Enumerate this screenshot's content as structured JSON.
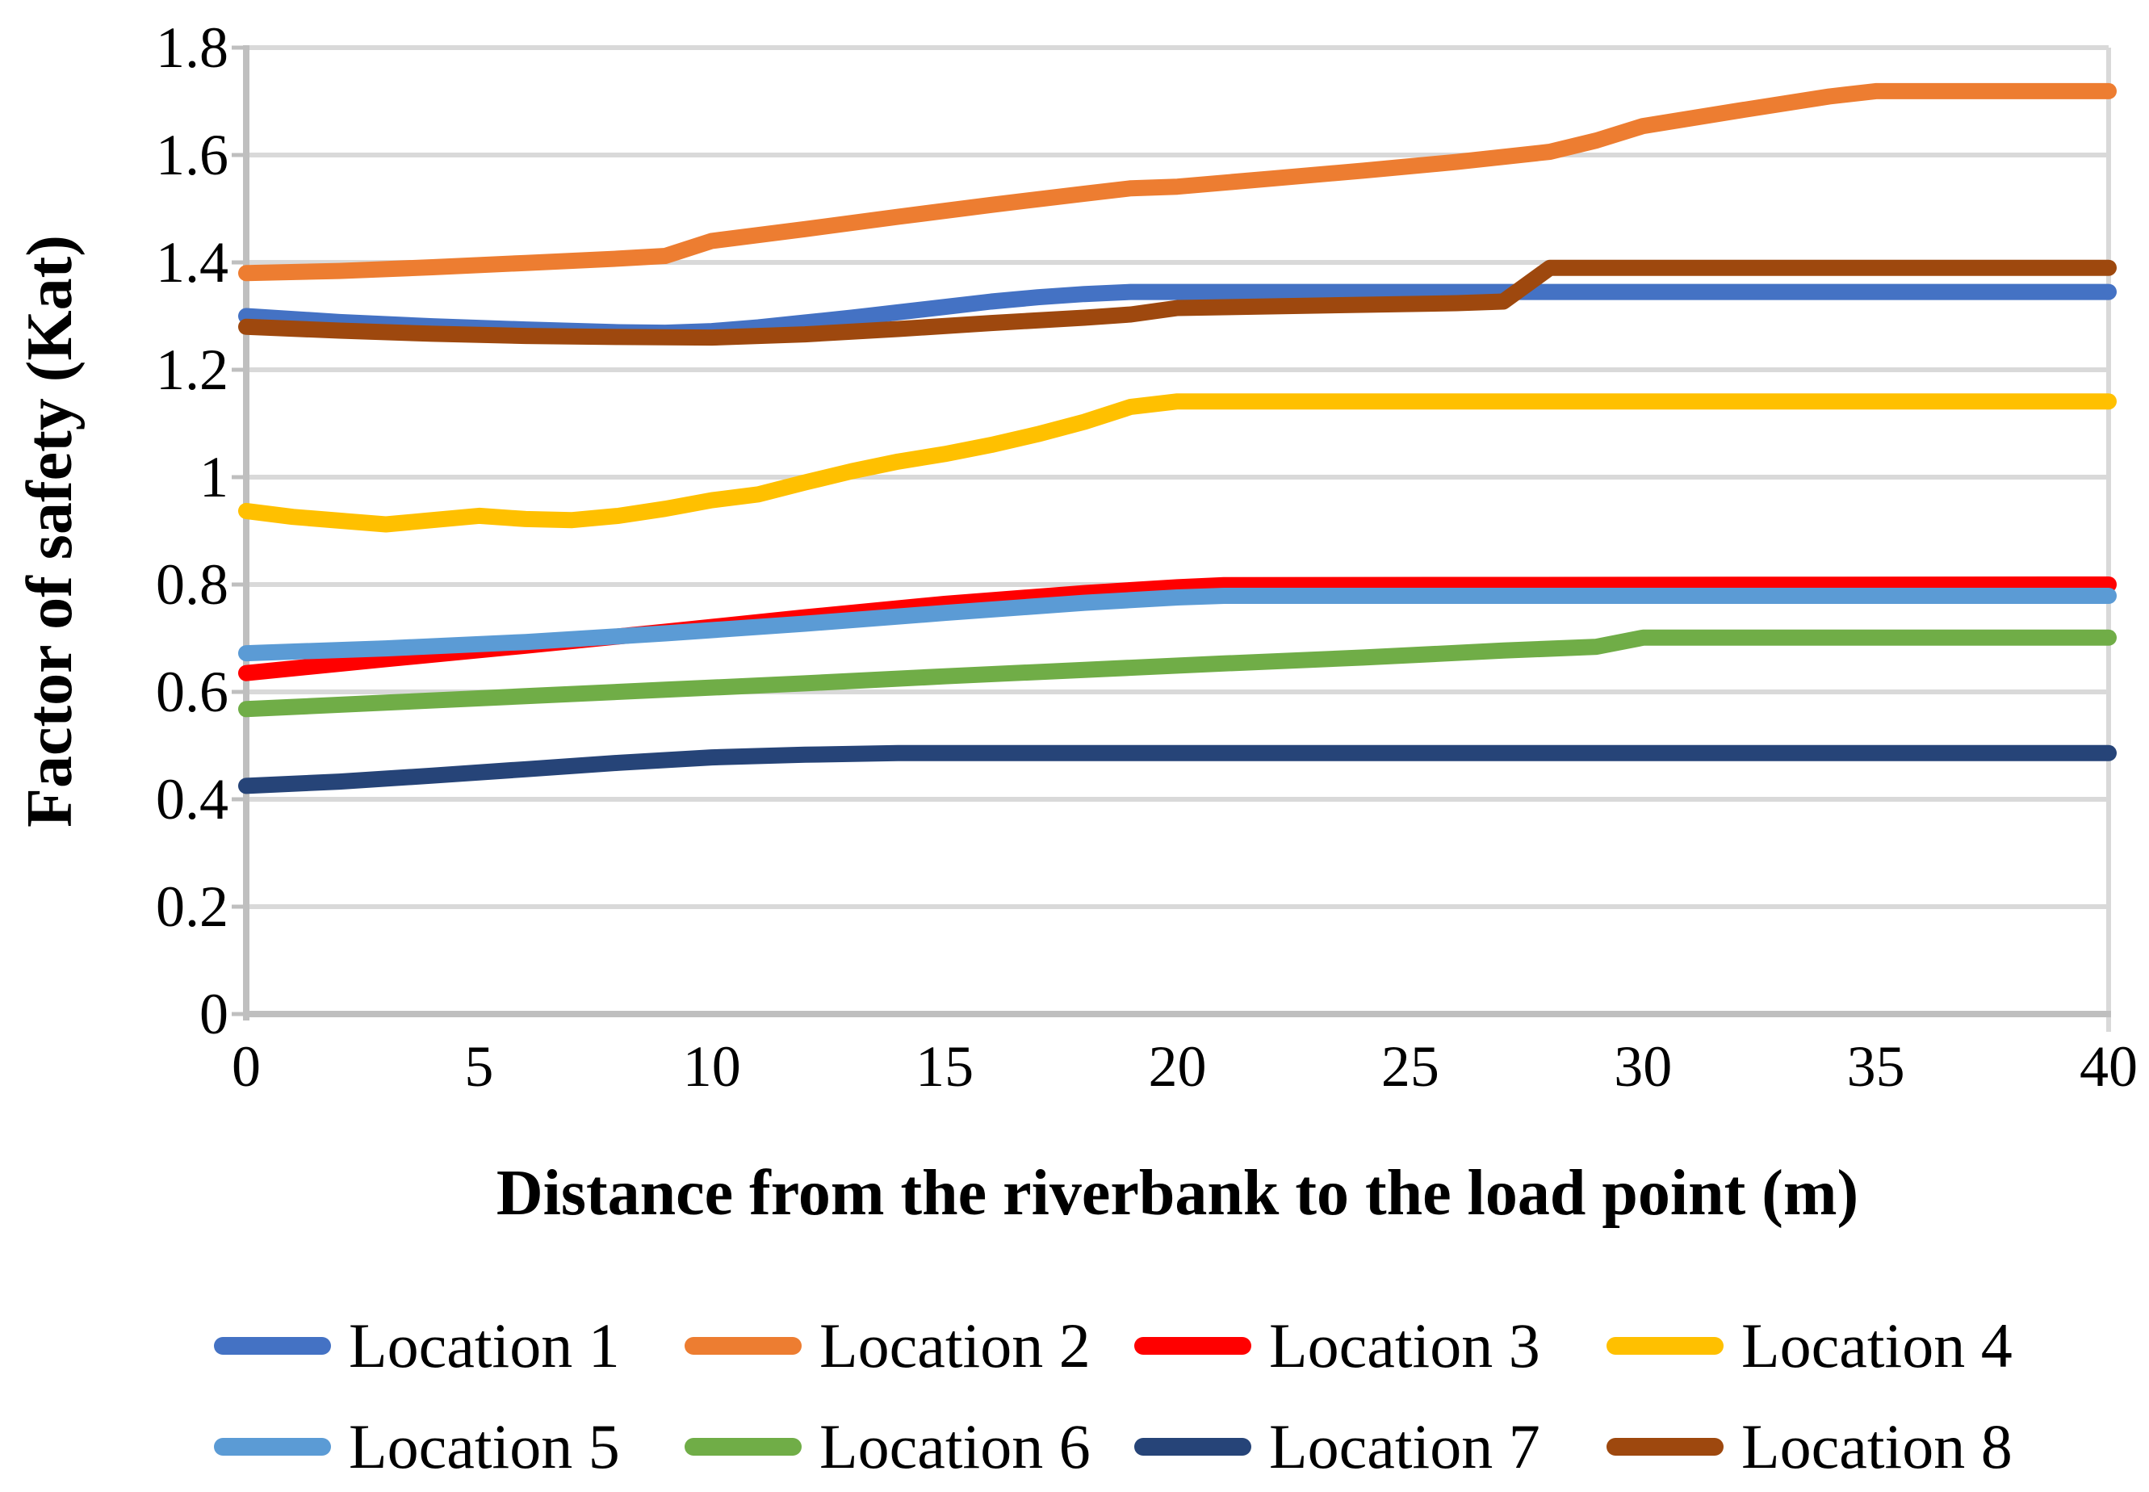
{
  "chart_data": {
    "type": "line",
    "title": "",
    "xlabel": "Distance from the riverbank to the load point (m)",
    "ylabel": "Factor of safety (Kat)",
    "xlim": [
      0,
      40
    ],
    "ylim": [
      0,
      1.8
    ],
    "x_ticks": [
      0,
      5,
      10,
      15,
      20,
      25,
      30,
      35,
      40
    ],
    "x_tick_labels": [
      "0",
      "5",
      "10",
      "15",
      "20",
      "25",
      "30",
      "35",
      "40"
    ],
    "y_ticks": [
      0,
      0.2,
      0.4,
      0.6,
      0.8,
      1,
      1.2,
      1.4,
      1.6,
      1.8
    ],
    "y_tick_labels": [
      "0",
      "0.2",
      "0.4",
      "0.6",
      "0.8",
      "1",
      "1.2",
      "1.4",
      "1.6",
      "1.8"
    ],
    "grid": "horizontal",
    "legend_position": "bottom",
    "colors": {
      "gridline": "#D9D9D9",
      "axis_line": "#BFBFBF",
      "text": "#000000",
      "background": "#FFFFFF"
    },
    "series": [
      {
        "name": "Location 1",
        "color": "#4472C4",
        "points": [
          [
            0,
            1.3
          ],
          [
            2,
            1.289
          ],
          [
            4,
            1.281
          ],
          [
            6,
            1.275
          ],
          [
            8,
            1.27
          ],
          [
            9,
            1.269
          ],
          [
            10,
            1.272
          ],
          [
            11,
            1.279
          ],
          [
            12,
            1.288
          ],
          [
            13,
            1.297
          ],
          [
            14,
            1.307
          ],
          [
            15,
            1.317
          ],
          [
            16,
            1.327
          ],
          [
            17,
            1.335
          ],
          [
            18,
            1.341
          ],
          [
            19,
            1.345
          ],
          [
            40,
            1.345
          ]
        ]
      },
      {
        "name": "Location 2",
        "color": "#ED7D31",
        "points": [
          [
            0,
            1.38
          ],
          [
            2,
            1.384
          ],
          [
            4,
            1.391
          ],
          [
            6,
            1.399
          ],
          [
            8,
            1.407
          ],
          [
            9,
            1.412
          ],
          [
            10,
            1.44
          ],
          [
            12,
            1.462
          ],
          [
            14,
            1.485
          ],
          [
            16,
            1.507
          ],
          [
            18,
            1.528
          ],
          [
            19,
            1.538
          ],
          [
            20,
            1.541
          ],
          [
            22,
            1.556
          ],
          [
            24,
            1.571
          ],
          [
            26,
            1.587
          ],
          [
            28,
            1.606
          ],
          [
            29,
            1.627
          ],
          [
            30,
            1.654
          ],
          [
            32,
            1.682
          ],
          [
            34,
            1.709
          ],
          [
            35,
            1.719
          ],
          [
            40,
            1.719
          ]
        ]
      },
      {
        "name": "Location 3",
        "color": "#FF0000",
        "points": [
          [
            0,
            0.635
          ],
          [
            3,
            0.661
          ],
          [
            6,
            0.686
          ],
          [
            9,
            0.712
          ],
          [
            12,
            0.739
          ],
          [
            15,
            0.764
          ],
          [
            18,
            0.784
          ],
          [
            20,
            0.795
          ],
          [
            21,
            0.799
          ],
          [
            40,
            0.8
          ]
        ]
      },
      {
        "name": "Location 4",
        "color": "#FFC000",
        "points": [
          [
            0,
            0.937
          ],
          [
            1,
            0.926
          ],
          [
            2,
            0.919
          ],
          [
            3,
            0.912
          ],
          [
            4,
            0.92
          ],
          [
            5,
            0.928
          ],
          [
            6,
            0.922
          ],
          [
            7,
            0.92
          ],
          [
            8,
            0.928
          ],
          [
            9,
            0.941
          ],
          [
            10,
            0.957
          ],
          [
            11,
            0.968
          ],
          [
            12,
            0.99
          ],
          [
            13,
            1.011
          ],
          [
            14,
            1.029
          ],
          [
            15,
            1.043
          ],
          [
            16,
            1.06
          ],
          [
            17,
            1.08
          ],
          [
            18,
            1.103
          ],
          [
            19,
            1.131
          ],
          [
            20,
            1.141
          ],
          [
            40,
            1.141
          ]
        ]
      },
      {
        "name": "Location 5",
        "color": "#5B9BD5",
        "points": [
          [
            0,
            0.672
          ],
          [
            3,
            0.681
          ],
          [
            6,
            0.693
          ],
          [
            9,
            0.709
          ],
          [
            12,
            0.727
          ],
          [
            15,
            0.747
          ],
          [
            18,
            0.766
          ],
          [
            20,
            0.776
          ],
          [
            21,
            0.779
          ],
          [
            40,
            0.779
          ]
        ]
      },
      {
        "name": "Location 6",
        "color": "#70AD47",
        "points": [
          [
            0,
            0.568
          ],
          [
            3,
            0.58
          ],
          [
            6,
            0.592
          ],
          [
            9,
            0.604
          ],
          [
            12,
            0.616
          ],
          [
            15,
            0.629
          ],
          [
            18,
            0.641
          ],
          [
            21,
            0.653
          ],
          [
            24,
            0.664
          ],
          [
            27,
            0.677
          ],
          [
            29,
            0.684
          ],
          [
            30,
            0.701
          ],
          [
            40,
            0.701
          ]
        ]
      },
      {
        "name": "Location 7",
        "color": "#264478",
        "points": [
          [
            0,
            0.425
          ],
          [
            2,
            0.433
          ],
          [
            4,
            0.444
          ],
          [
            6,
            0.456
          ],
          [
            8,
            0.468
          ],
          [
            10,
            0.478
          ],
          [
            12,
            0.483
          ],
          [
            14,
            0.486
          ],
          [
            40,
            0.486
          ]
        ]
      },
      {
        "name": "Location 8",
        "color": "#9E480E",
        "points": [
          [
            0,
            1.28
          ],
          [
            2,
            1.273
          ],
          [
            4,
            1.267
          ],
          [
            6,
            1.263
          ],
          [
            8,
            1.261
          ],
          [
            10,
            1.26
          ],
          [
            12,
            1.266
          ],
          [
            14,
            1.276
          ],
          [
            16,
            1.287
          ],
          [
            18,
            1.297
          ],
          [
            19,
            1.303
          ],
          [
            20,
            1.315
          ],
          [
            22,
            1.318
          ],
          [
            24,
            1.321
          ],
          [
            26,
            1.324
          ],
          [
            27,
            1.327
          ],
          [
            28,
            1.39
          ],
          [
            40,
            1.39
          ]
        ]
      }
    ]
  }
}
